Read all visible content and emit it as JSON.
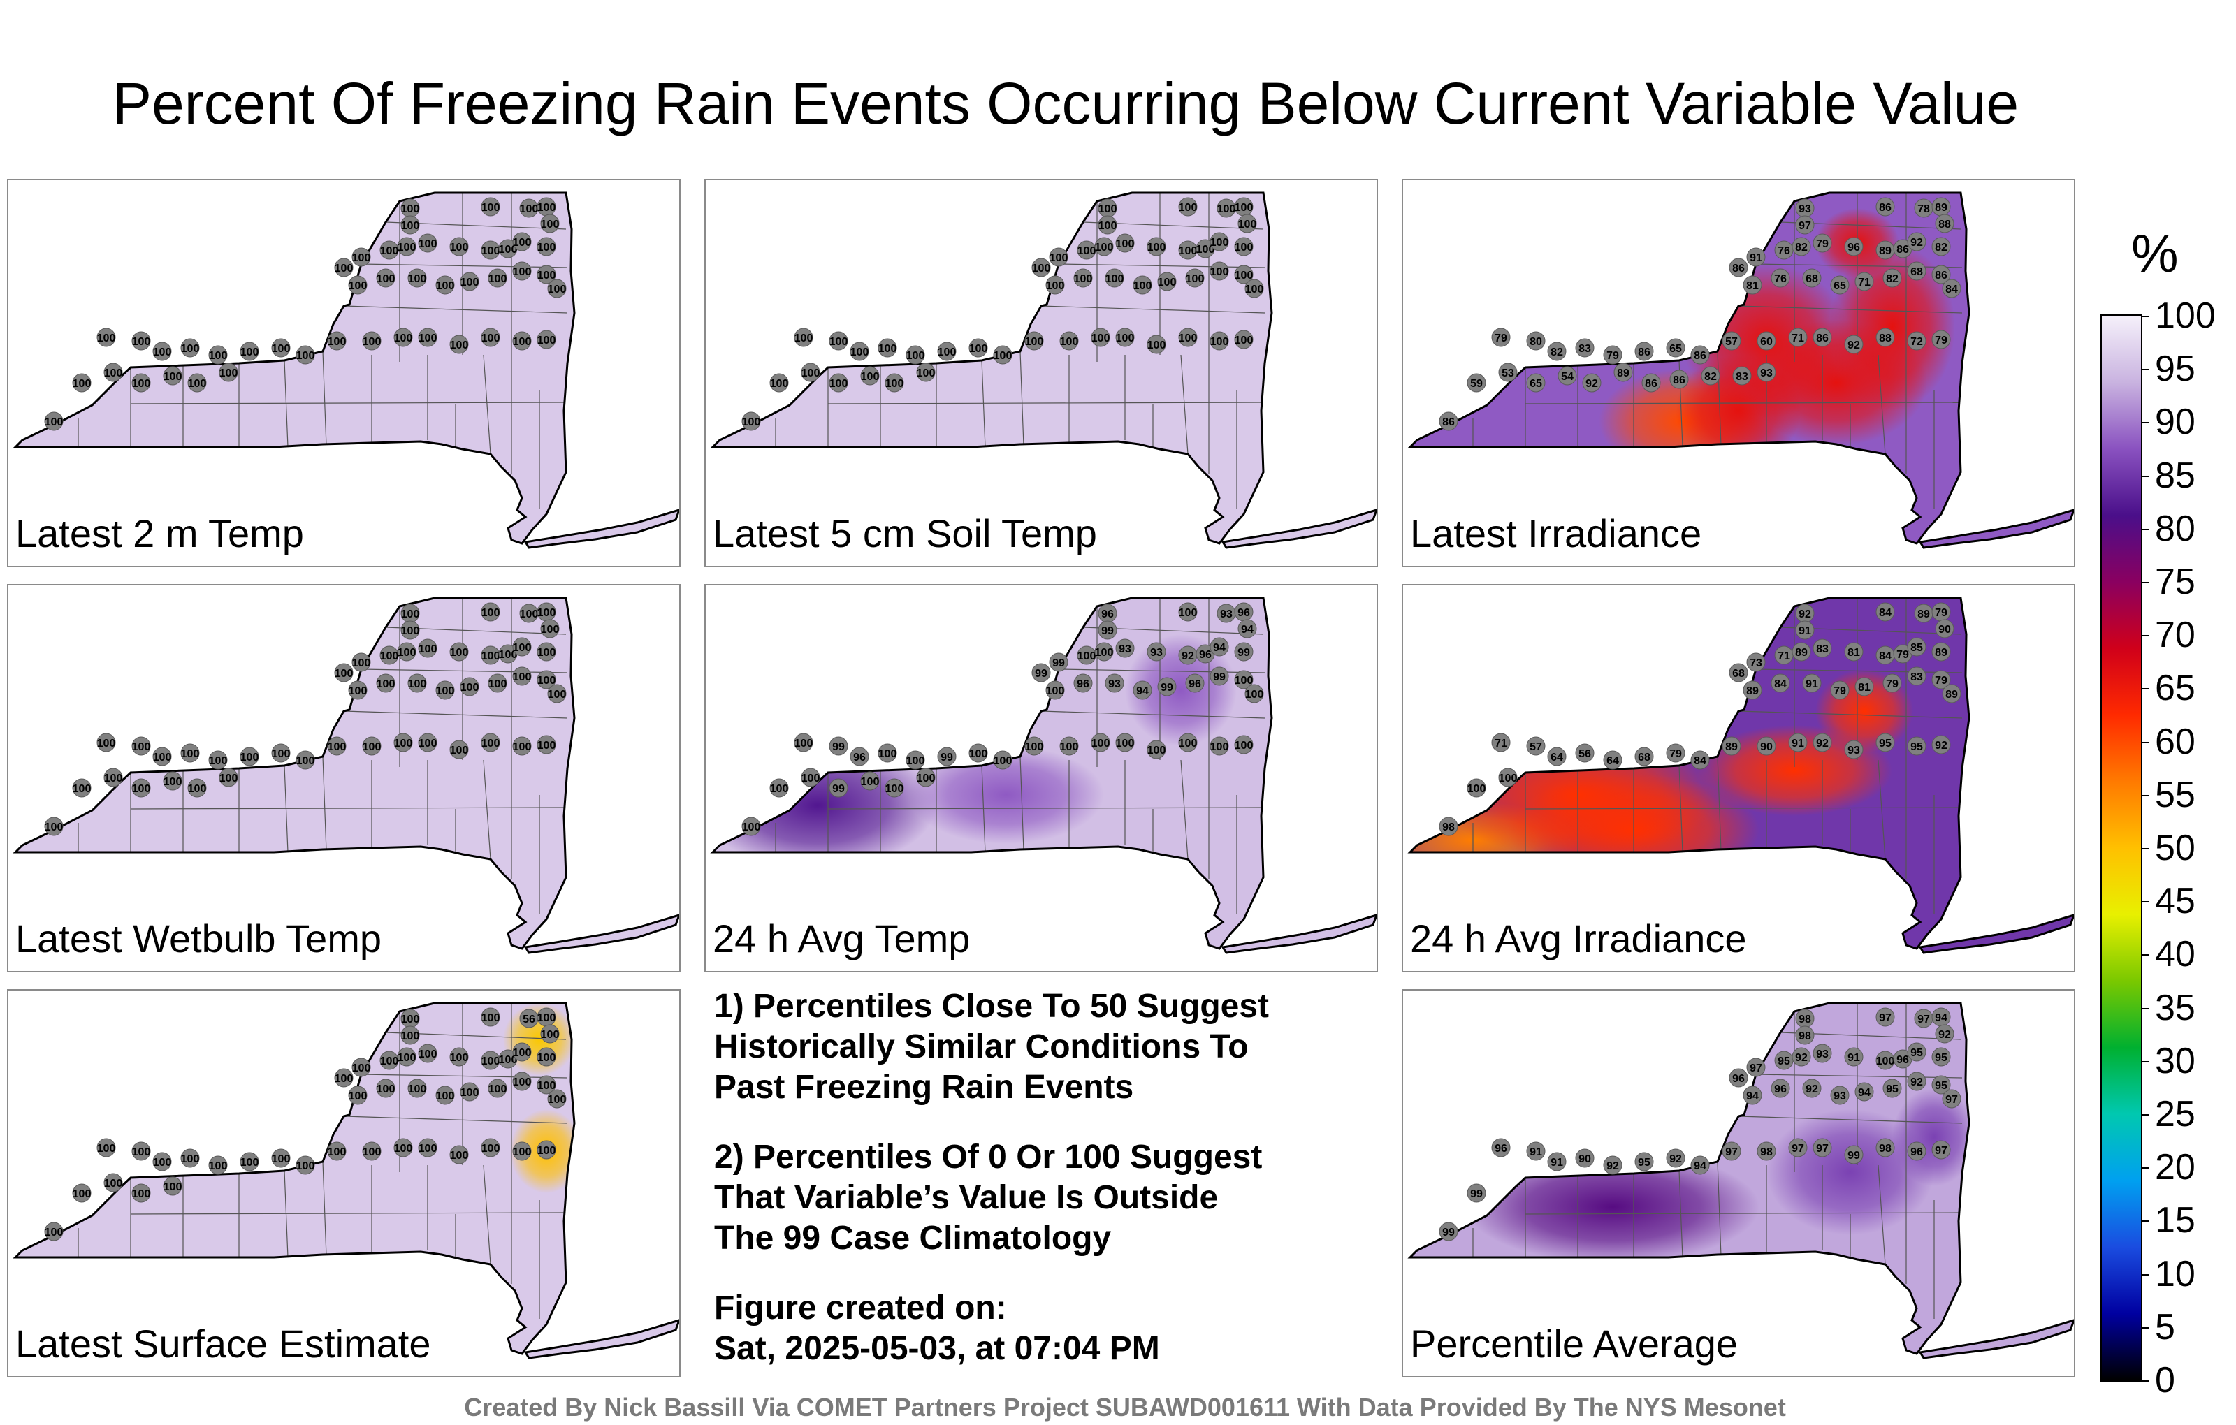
{
  "title": "Percent Of Freezing Rain Events Occurring Below Current Variable Value",
  "panels": [
    {
      "label": "Latest 2 m Temp",
      "scheme": "flat",
      "values": [
        100,
        100,
        100,
        100,
        100,
        100,
        100,
        100,
        100,
        100,
        100,
        100,
        100,
        100,
        100,
        100,
        100,
        100,
        100,
        100,
        100,
        100,
        100,
        100,
        100,
        100,
        100,
        100,
        100,
        100,
        100,
        100,
        100,
        100,
        100,
        100,
        100,
        100,
        100,
        100,
        100,
        100,
        100,
        100,
        100,
        100,
        100,
        100
      ]
    },
    {
      "label": "Latest 5 cm Soil Temp",
      "scheme": "flat",
      "values": [
        100,
        100,
        100,
        100,
        100,
        100,
        100,
        100,
        100,
        100,
        100,
        100,
        100,
        100,
        100,
        100,
        100,
        100,
        100,
        100,
        100,
        100,
        100,
        100,
        100,
        100,
        100,
        100,
        100,
        100,
        100,
        100,
        100,
        100,
        100,
        100,
        100,
        100,
        100,
        100,
        100,
        100,
        100,
        100,
        100,
        100,
        100,
        100
      ]
    },
    {
      "label": "Latest Irradiance",
      "scheme": "irr",
      "values": [
        93,
        97,
        86,
        78,
        89,
        88,
        86,
        91,
        76,
        82,
        79,
        96,
        89,
        86,
        92,
        82,
        81,
        76,
        68,
        65,
        71,
        82,
        68,
        86,
        84,
        79,
        80,
        82,
        83,
        79,
        86,
        65,
        86,
        57,
        60,
        71,
        86,
        92,
        88,
        72,
        79,
        86,
        59,
        53,
        65,
        54,
        92,
        89,
        86,
        86,
        82,
        83,
        93
      ]
    },
    {
      "label": "Latest Wetbulb Temp",
      "scheme": "flat",
      "values": [
        100,
        100,
        100,
        100,
        100,
        100,
        100,
        100,
        100,
        100,
        100,
        100,
        100,
        100,
        100,
        100,
        100,
        100,
        100,
        100,
        100,
        100,
        100,
        100,
        100,
        100,
        100,
        100,
        100,
        100,
        100,
        100,
        100,
        100,
        100,
        100,
        100,
        100,
        100,
        100,
        100,
        100,
        100,
        100,
        100,
        100,
        100,
        100
      ]
    },
    {
      "label": "24 h Avg Temp",
      "scheme": "avgt",
      "values": [
        96,
        99,
        100,
        93,
        96,
        94,
        99,
        99,
        100,
        100,
        93,
        93,
        92,
        96,
        94,
        99,
        100,
        96,
        93,
        94,
        99,
        96,
        99,
        100,
        100,
        100,
        99,
        96,
        100,
        100,
        99,
        100,
        100,
        100,
        100,
        100,
        100,
        100,
        100,
        100,
        100,
        100,
        100,
        100,
        99,
        100,
        100,
        100
      ]
    },
    {
      "label": "24 h Avg Irradiance",
      "scheme": "airr",
      "values": [
        92,
        91,
        84,
        89,
        79,
        90,
        68,
        73,
        71,
        89,
        83,
        81,
        84,
        79,
        85,
        89,
        89,
        84,
        91,
        79,
        81,
        79,
        83,
        79,
        89,
        71,
        57,
        64,
        56,
        64,
        68,
        79,
        84,
        89,
        90,
        91,
        92,
        93,
        95,
        95,
        92,
        98,
        100,
        100
      ]
    },
    {
      "label": "Latest Surface Estimate",
      "scheme": "sfc",
      "values": [
        100,
        100,
        100,
        56,
        100,
        100,
        100,
        100,
        100,
        100,
        100,
        100,
        100,
        100,
        100,
        100,
        100,
        100,
        100,
        100,
        100,
        100,
        100,
        100,
        100,
        100,
        100,
        100,
        100,
        100,
        100,
        100,
        100,
        100,
        100,
        100,
        100,
        100,
        100,
        100,
        100,
        100,
        100,
        100,
        100,
        100
      ]
    },
    {
      "label": "Percentile Average",
      "scheme": "pavg",
      "values": [
        98,
        98,
        97,
        97,
        94,
        92,
        96,
        97,
        95,
        92,
        93,
        91,
        100,
        96,
        95,
        95,
        94,
        96,
        92,
        93,
        94,
        95,
        92,
        95,
        97,
        96,
        91,
        91,
        90,
        92,
        95,
        92,
        94,
        97,
        98,
        97,
        97,
        99,
        98,
        96,
        97,
        99,
        99
      ]
    }
  ],
  "notes": [
    "1) Percentiles Close To 50 Suggest\nHistorically Similar Conditions To\nPast Freezing Rain Events",
    "2) Percentiles Of 0 Or 100 Suggest\nThat Variable’s Value Is Outside\nThe 99 Case Climatology",
    "Figure created on:\nSat, 2025-05-03, at 07:04 PM"
  ],
  "colorbar": {
    "unit": "%",
    "ticks": [
      "100",
      "95",
      "90",
      "85",
      "80",
      "75",
      "70",
      "65",
      "60",
      "55",
      "50",
      "45",
      "40",
      "35",
      "30",
      "25",
      "20",
      "15",
      "10",
      "5",
      "0"
    ],
    "stops": [
      "#f5f0fa",
      "#c9b3e0",
      "#8a52c0",
      "#4a0f8a",
      "#8a0060",
      "#d0001a",
      "#ff2a00",
      "#ff7a00",
      "#ffc000",
      "#e8f000",
      "#7ac800",
      "#00b030",
      "#00c8b0",
      "#00a0f0",
      "#1a4ce0",
      "#0000a0",
      "#000000"
    ]
  },
  "footer": "Created By Nick Bassill Via COMET Partners Project SUBAWD001611 With Data Provided By The NYS Mesonet"
}
